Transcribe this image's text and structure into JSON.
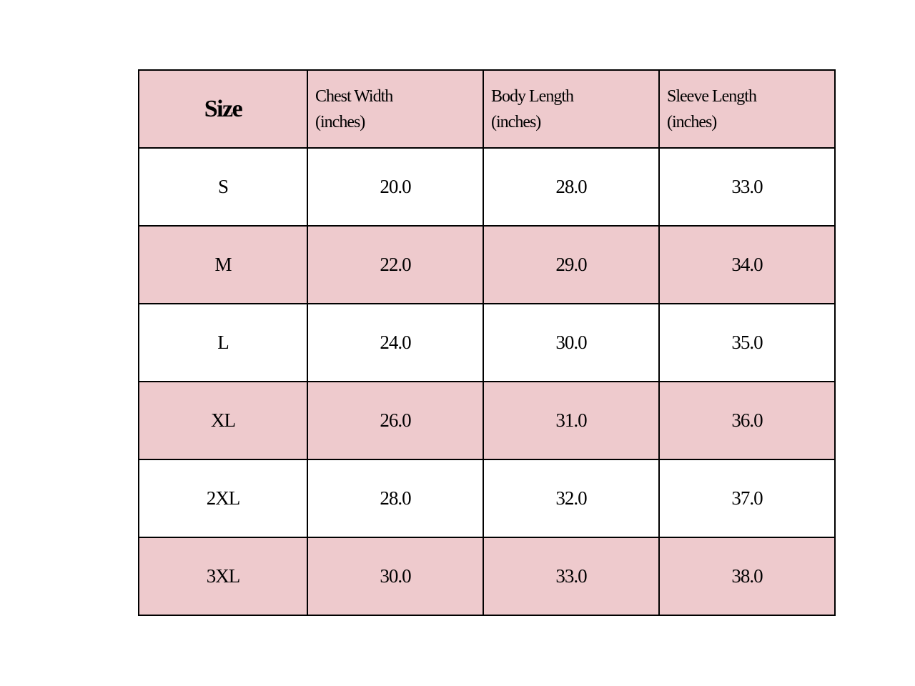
{
  "colors": {
    "header_bg": "#eecacd",
    "alt_row_bg": "#eecacd",
    "row_bg": "#ffffff",
    "border": "#000000"
  },
  "headers": [
    {
      "line1": "Size",
      "line2": ""
    },
    {
      "line1": "Chest Width",
      "line2": "(inches)"
    },
    {
      "line1": "Body Length",
      "line2": "(inches)"
    },
    {
      "line1": "Sleeve Length",
      "line2": "(inches)"
    }
  ],
  "rows": [
    [
      "S",
      "20.0",
      "28.0",
      "33.0"
    ],
    [
      "M",
      "22.0",
      "29.0",
      "34.0"
    ],
    [
      "L",
      "24.0",
      "30.0",
      "35.0"
    ],
    [
      "XL",
      "26.0",
      "31.0",
      "36.0"
    ],
    [
      "2XL",
      "28.0",
      "32.0",
      "37.0"
    ],
    [
      "3XL",
      "30.0",
      "33.0",
      "38.0"
    ]
  ]
}
